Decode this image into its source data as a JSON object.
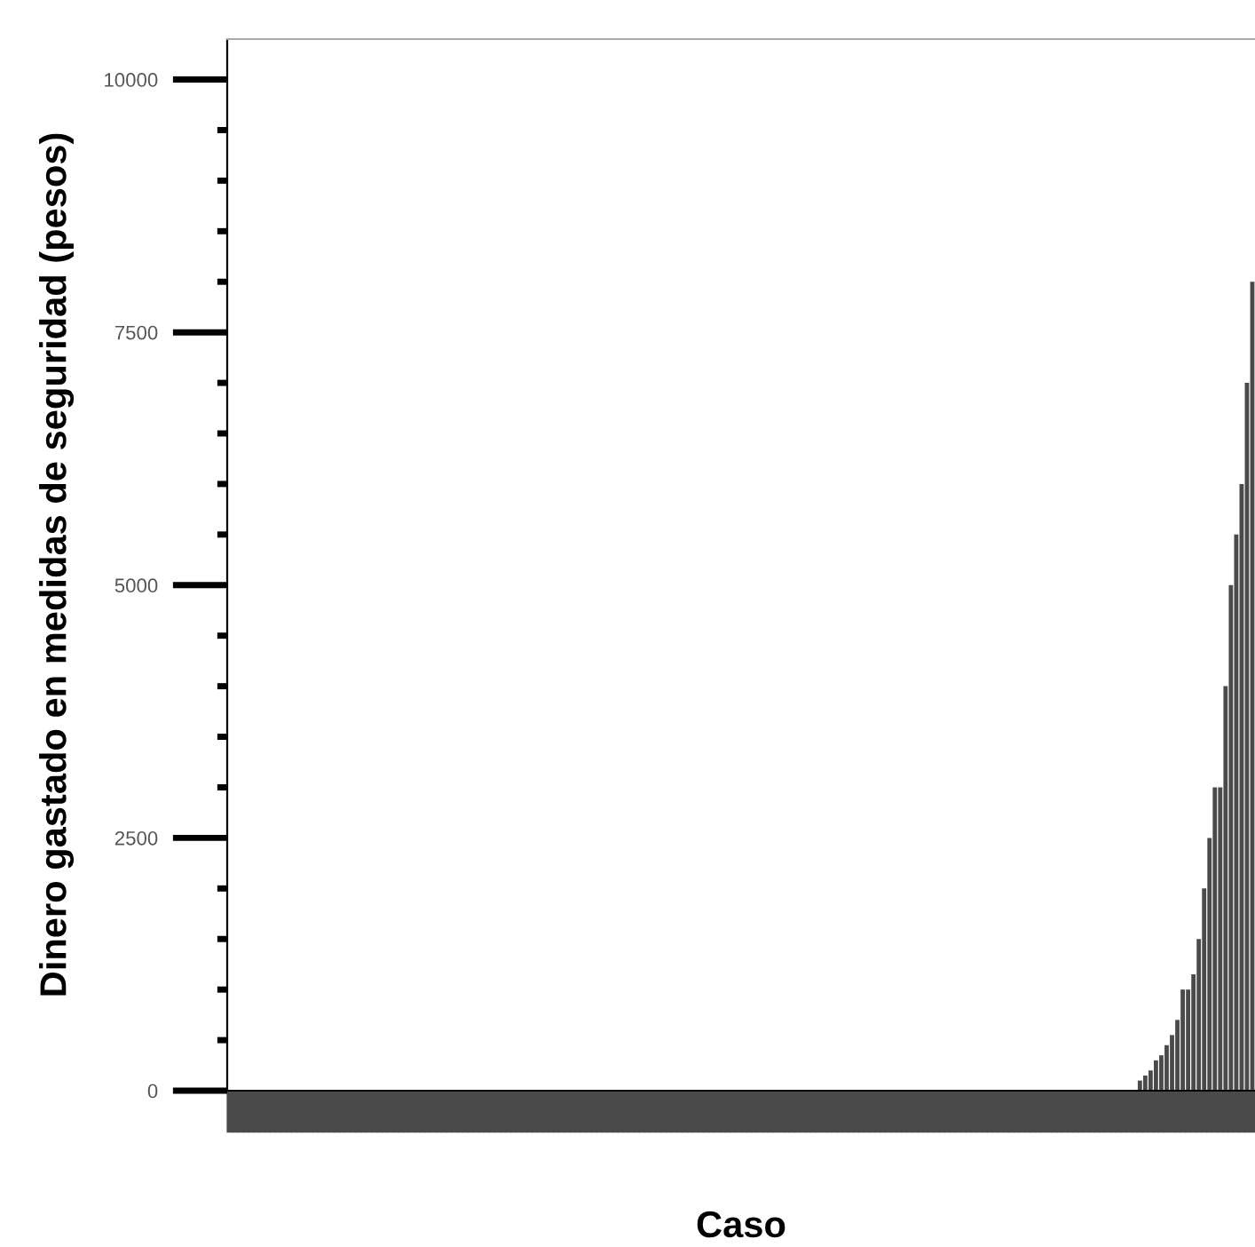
{
  "chart_data": {
    "type": "bar",
    "xlabel": "Caso",
    "ylabel": "Dinero gastado en medidas de seguridad (pesos)",
    "categories": [
      null,
      null,
      null,
      null,
      null,
      null,
      null,
      null,
      null,
      null,
      null,
      null,
      null,
      null,
      null,
      null,
      null,
      null,
      null,
      null,
      null,
      null,
      null,
      null,
      null,
      null,
      null,
      null,
      null,
      null,
      null,
      null,
      null,
      null,
      null,
      null,
      null,
      null,
      null,
      null,
      null,
      null,
      null,
      null,
      null,
      null,
      null,
      null,
      null,
      null,
      null,
      null,
      null,
      null,
      null,
      null,
      null,
      null,
      null,
      null,
      null,
      null,
      null,
      null,
      null,
      null,
      null,
      null,
      null,
      null,
      null,
      null,
      null,
      null,
      null,
      null,
      null,
      null,
      null,
      null,
      null,
      null,
      null,
      null,
      null,
      null,
      null,
      null,
      null,
      null,
      null,
      null,
      null,
      null,
      null,
      null,
      null,
      null,
      null,
      null,
      null,
      null,
      null,
      null,
      null,
      null,
      null,
      null,
      null,
      null,
      null,
      null,
      null,
      null,
      null,
      null,
      null,
      null,
      null,
      null,
      null,
      null,
      null,
      null,
      null,
      null,
      null,
      null,
      null,
      null,
      null,
      null,
      null,
      null,
      null,
      null,
      null,
      null,
      null,
      null,
      null,
      null,
      null,
      null,
      null,
      null,
      null,
      null,
      null,
      null,
      null,
      null,
      null,
      null,
      null,
      null,
      null,
      null,
      null,
      null,
      null,
      null,
      null,
      null,
      null,
      null,
      null,
      null,
      null,
      null,
      null,
      null,
      null,
      null,
      null,
      null,
      null,
      null,
      null,
      null,
      null,
      null,
      null,
      null,
      null,
      null,
      null,
      null,
      null,
      null,
      null,
      null
    ],
    "values": [
      0,
      0,
      0,
      0,
      0,
      0,
      0,
      0,
      0,
      0,
      0,
      0,
      0,
      0,
      0,
      0,
      0,
      0,
      0,
      0,
      0,
      0,
      0,
      0,
      0,
      0,
      0,
      0,
      0,
      0,
      0,
      0,
      0,
      0,
      0,
      0,
      0,
      0,
      0,
      0,
      0,
      0,
      0,
      0,
      0,
      0,
      0,
      0,
      0,
      0,
      0,
      0,
      0,
      0,
      0,
      0,
      0,
      0,
      0,
      0,
      0,
      0,
      0,
      0,
      0,
      0,
      0,
      0,
      0,
      0,
      0,
      0,
      0,
      0,
      0,
      0,
      0,
      0,
      0,
      0,
      0,
      0,
      0,
      0,
      0,
      0,
      0,
      0,
      0,
      0,
      0,
      0,
      0,
      0,
      0,
      0,
      0,
      0,
      0,
      0,
      0,
      0,
      0,
      0,
      0,
      0,
      0,
      0,
      0,
      0,
      0,
      0,
      0,
      0,
      0,
      0,
      0,
      0,
      0,
      0,
      0,
      0,
      0,
      0,
      0,
      0,
      0,
      0,
      0,
      0,
      0,
      0,
      0,
      0,
      0,
      0,
      0,
      0,
      0,
      0,
      0,
      0,
      0,
      0,
      0,
      0,
      0,
      0,
      0,
      0,
      0,
      0,
      0,
      0,
      0,
      0,
      0,
      0,
      0,
      0,
      0,
      0,
      0,
      0,
      0,
      0,
      0,
      0,
      0,
      0,
      100,
      150,
      200,
      300,
      350,
      450,
      550,
      700,
      1000,
      1000,
      1150,
      1500,
      2000,
      2500,
      3000,
      3000,
      4000,
      5000,
      5500,
      6000,
      7000,
      8000
    ],
    "color": "#4a4a4a",
    "ylim": [
      0,
      10400
    ],
    "yticks": [
      0,
      2500,
      5000,
      7500,
      10000
    ],
    "grid": false,
    "legend": false
  }
}
